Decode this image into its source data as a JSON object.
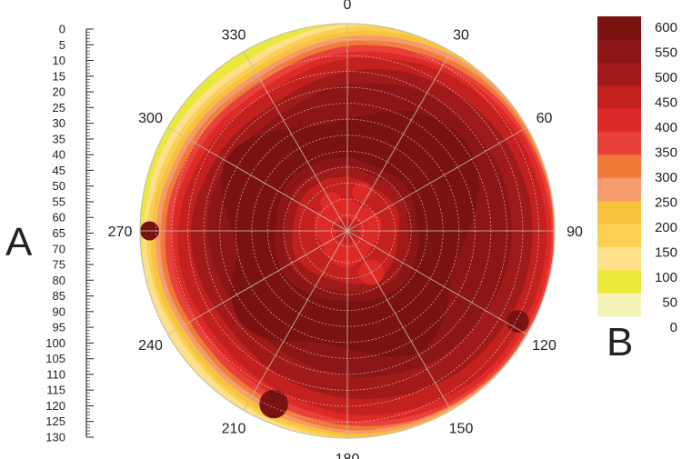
{
  "chart_data": {
    "type": "heatmap",
    "subtype": "polar-contour",
    "title": "",
    "panel_labels": [
      "A",
      "B"
    ],
    "angular_axis": {
      "unit": "degrees",
      "range": [
        0,
        360
      ],
      "tick_labels": [
        "0",
        "30",
        "60",
        "90",
        "120",
        "150",
        "180",
        "210",
        "240",
        "270",
        "300",
        "330"
      ]
    },
    "radial_axis": {
      "range": [
        0,
        130
      ],
      "direction": "center-to-edge",
      "tick_labels": [
        "0",
        "5",
        "10",
        "15",
        "20",
        "25",
        "30",
        "35",
        "40",
        "45",
        "50",
        "55",
        "60",
        "65",
        "70",
        "75",
        "80",
        "85",
        "90",
        "95",
        "100",
        "105",
        "110",
        "115",
        "120",
        "125",
        "130"
      ]
    },
    "colorbar": {
      "range": [
        0,
        600
      ],
      "tick_labels": [
        "600",
        "550",
        "500",
        "450",
        "400",
        "350",
        "300",
        "250",
        "200",
        "150",
        "100",
        "50",
        "0"
      ],
      "colors_top_to_bottom": [
        "#7a1212",
        "#8c1616",
        "#a11a1a",
        "#c32020",
        "#dd2a26",
        "#e8403a",
        "#f07a38",
        "#f59a6a",
        "#f9c23c",
        "#fbd052",
        "#fde089",
        "#eae838",
        "#f5f3b8"
      ]
    },
    "grid": true,
    "contours": [
      {
        "value": 25,
        "radius": [
          130,
          130,
          130,
          130,
          130,
          130,
          130,
          130,
          130,
          130,
          130,
          130,
          130,
          130,
          130,
          130,
          130,
          130,
          130,
          130,
          130,
          130,
          130,
          130,
          130,
          130,
          130,
          130,
          130,
          130,
          130,
          130,
          130,
          130,
          130,
          130
        ]
      },
      {
        "value": 75,
        "radius": [
          130,
          130,
          130,
          130,
          130,
          130,
          130,
          130,
          130,
          130,
          130,
          130,
          130,
          130,
          130,
          130,
          130,
          130,
          130,
          130,
          130,
          130,
          130,
          130,
          130,
          130,
          130,
          128,
          127,
          127,
          126,
          125,
          124,
          124,
          126,
          128
        ]
      },
      {
        "value": 125,
        "radius": [
          128,
          130,
          130,
          130,
          130,
          130,
          130,
          130,
          130,
          130,
          130,
          130,
          130,
          130,
          130,
          130,
          130,
          130,
          130,
          129,
          128,
          127,
          126,
          125,
          125,
          126,
          126,
          126,
          124,
          123,
          122,
          121,
          120,
          120,
          122,
          125
        ]
      },
      {
        "value": 175,
        "radius": [
          125,
          127,
          129,
          130,
          130,
          130,
          130,
          130,
          130,
          130,
          130,
          130,
          130,
          130,
          130,
          130,
          130,
          130,
          129,
          127,
          126,
          125,
          124,
          123,
          123,
          124,
          124,
          123,
          122,
          120,
          119,
          118,
          117,
          117,
          119,
          122
        ]
      },
      {
        "value": 225,
        "radius": [
          122,
          124,
          126,
          128,
          129,
          130,
          130,
          130,
          130,
          130,
          130,
          130,
          130,
          130,
          130,
          129,
          129,
          128,
          127,
          125,
          124,
          122,
          121,
          120,
          120,
          121,
          121,
          120,
          119,
          117,
          116,
          115,
          114,
          114,
          116,
          119
        ]
      },
      {
        "value": 275,
        "radius": [
          119,
          121,
          123,
          125,
          127,
          128,
          129,
          129,
          130,
          130,
          130,
          130,
          130,
          130,
          129,
          128,
          127,
          126,
          125,
          123,
          121,
          119,
          118,
          117,
          117,
          118,
          118,
          117,
          116,
          114,
          113,
          112,
          111,
          111,
          113,
          116
        ]
      },
      {
        "value": 325,
        "radius": [
          116,
          118,
          120,
          122,
          124,
          126,
          127,
          128,
          129,
          129,
          130,
          130,
          129,
          129,
          128,
          127,
          126,
          124,
          122,
          120,
          118,
          116,
          115,
          114,
          114,
          115,
          115,
          114,
          113,
          111,
          110,
          109,
          108,
          108,
          110,
          113
        ]
      },
      {
        "value": 375,
        "radius": [
          112,
          114,
          116,
          119,
          121,
          123,
          125,
          126,
          127,
          128,
          128,
          128,
          127,
          127,
          126,
          125,
          123,
          121,
          119,
          116,
          114,
          112,
          111,
          110,
          110,
          111,
          111,
          110,
          109,
          107,
          106,
          105,
          104,
          104,
          106,
          109
        ]
      },
      {
        "value": 425,
        "radius": [
          108,
          110,
          113,
          116,
          118,
          120,
          122,
          123,
          124,
          125,
          125,
          125,
          124,
          124,
          123,
          121,
          119,
          117,
          115,
          112,
          110,
          108,
          107,
          106,
          106,
          107,
          107,
          106,
          105,
          103,
          102,
          101,
          100,
          100,
          102,
          105
        ]
      },
      {
        "value": 475,
        "radius": [
          100,
          103,
          106,
          108,
          110,
          112,
          114,
          115,
          116,
          116,
          116,
          116,
          115,
          114,
          113,
          111,
          109,
          107,
          105,
          103,
          101,
          99,
          97,
          96,
          96,
          97,
          98,
          98,
          97,
          95,
          94,
          93,
          92,
          92,
          94,
          97
        ]
      },
      {
        "value": 525,
        "radius": [
          92,
          94,
          97,
          99,
          100,
          101,
          102,
          103,
          103,
          103,
          103,
          102,
          101,
          100,
          99,
          97,
          95,
          93,
          91,
          89,
          87,
          86,
          85,
          85,
          85,
          86,
          87,
          88,
          88,
          87,
          86,
          85,
          84,
          84,
          86,
          89
        ]
      },
      {
        "value": 575,
        "radius": [
          70,
          74,
          80,
          86,
          90,
          93,
          92,
          88,
          82,
          76,
          72,
          70,
          74,
          80,
          86,
          88,
          84,
          78,
          74,
          72,
          74,
          80,
          86,
          88,
          84,
          76,
          70,
          72,
          78,
          84,
          88,
          86,
          80,
          74,
          70,
          68
        ]
      },
      {
        "value": 525,
        "radius": [
          46,
          45,
          44,
          44,
          45,
          46,
          46,
          45,
          44,
          44,
          45,
          46,
          47,
          48,
          48,
          47,
          46,
          45,
          44,
          44,
          45,
          46,
          47,
          48,
          48,
          47,
          46,
          45,
          45,
          46,
          47,
          48,
          48,
          47,
          47,
          46
        ]
      },
      {
        "value": 475,
        "radius": [
          40,
          39,
          38,
          38,
          39,
          40,
          40,
          39,
          38,
          38,
          39,
          40,
          41,
          42,
          42,
          41,
          40,
          39,
          38,
          38,
          39,
          40,
          41,
          42,
          42,
          41,
          40,
          39,
          39,
          40,
          41,
          42,
          42,
          41,
          41,
          40
        ]
      },
      {
        "value": 425,
        "radius": [
          34,
          33,
          33,
          32,
          32,
          33,
          34,
          34,
          33,
          32,
          32,
          33,
          34,
          35,
          36,
          36,
          35,
          34,
          33,
          32,
          32,
          33,
          34,
          35,
          36,
          36,
          35,
          34,
          34,
          34,
          35,
          35,
          35,
          35,
          35,
          34
        ]
      },
      {
        "value": 375,
        "radius": [
          20,
          19,
          18,
          18,
          19,
          20,
          21,
          22,
          22,
          21,
          20,
          19,
          18,
          18,
          19,
          20,
          21,
          22,
          23,
          23,
          22,
          21,
          20,
          19,
          18,
          18,
          19,
          20,
          21,
          22,
          22,
          21,
          20,
          20,
          20,
          20
        ]
      },
      {
        "value": 425,
        "radius": [
          8,
          8,
          7,
          7,
          8,
          9,
          9,
          8,
          7,
          7,
          8,
          9,
          9,
          8,
          7,
          7,
          8,
          9,
          9,
          8,
          7,
          7,
          8,
          9,
          9,
          8,
          7,
          7,
          8,
          9,
          9,
          8,
          7,
          7,
          8,
          8
        ]
      }
    ],
    "blobs": [
      {
        "value": 575,
        "angle": 270,
        "r": 124,
        "size": 6
      },
      {
        "value": 575,
        "angle": 118,
        "r": 121,
        "size": 7
      },
      {
        "value": 575,
        "angle": 203,
        "r": 118,
        "size": 9
      },
      {
        "value": 375,
        "angle": 20,
        "r": 26,
        "size": 6
      },
      {
        "value": 375,
        "angle": 330,
        "r": 20,
        "size": 7
      },
      {
        "value": 375,
        "angle": 150,
        "r": 30,
        "size": 8
      }
    ]
  }
}
